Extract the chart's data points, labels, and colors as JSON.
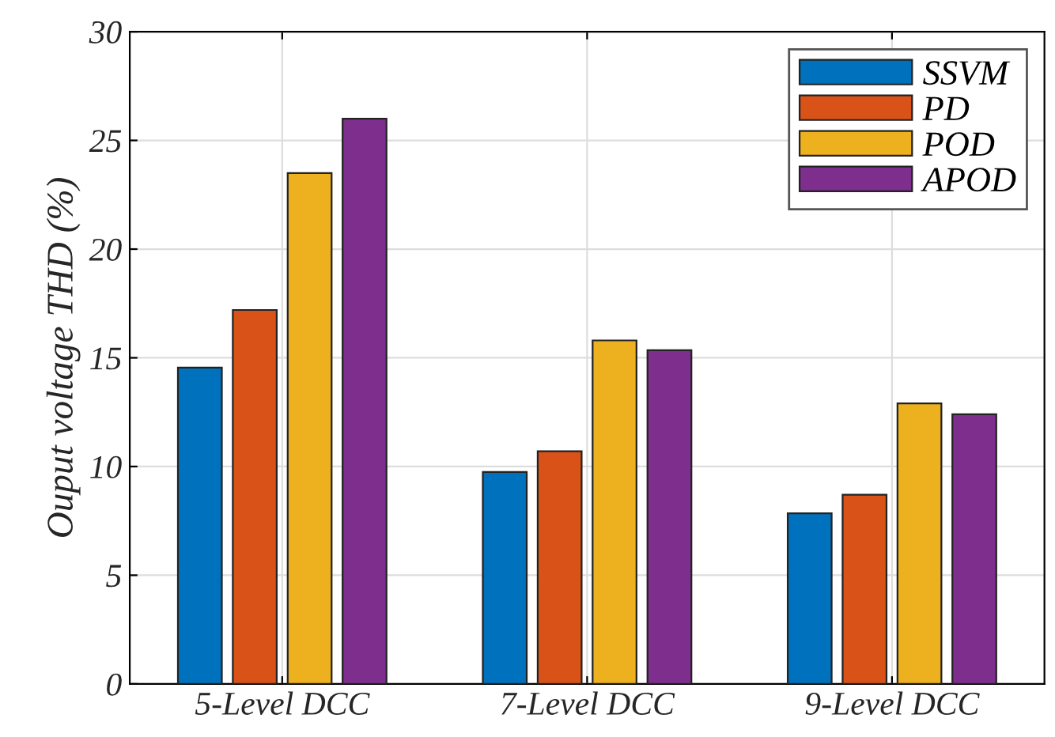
{
  "chart_data": {
    "type": "bar",
    "ylabel": "Ouput voltage THD (%)",
    "categories": [
      "5-Level DCC",
      "7-Level DCC",
      "9-Level DCC"
    ],
    "series": [
      {
        "name": "SSVM",
        "color": "#0072bd",
        "values": [
          14.55,
          9.75,
          7.85
        ]
      },
      {
        "name": "PD",
        "color": "#d95319",
        "values": [
          17.2,
          10.7,
          8.7
        ]
      },
      {
        "name": "POD",
        "color": "#edb120",
        "values": [
          23.5,
          15.8,
          12.9
        ]
      },
      {
        "name": "APOD",
        "color": "#7e2f8e",
        "values": [
          26.0,
          15.35,
          12.4
        ]
      }
    ],
    "ylim": [
      0,
      30
    ],
    "yticks": [
      0,
      5,
      10,
      15,
      20,
      25,
      30
    ],
    "grid": true,
    "legend": "top right"
  }
}
